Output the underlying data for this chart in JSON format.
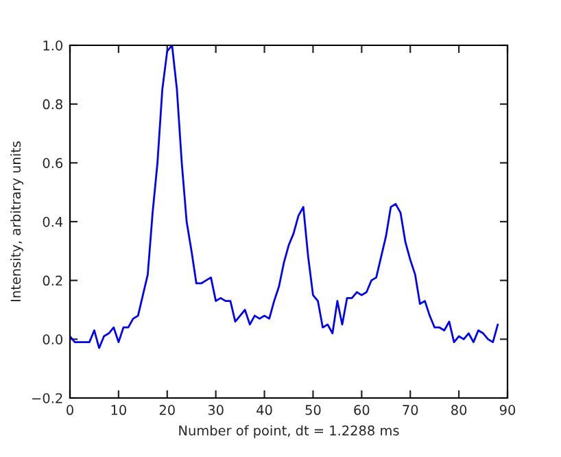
{
  "chart_data": {
    "type": "line",
    "xlabel": "Number of point, dt = 1.2288 ms",
    "ylabel": "Intensity, arbitrary units",
    "x": [
      0,
      1,
      2,
      3,
      4,
      5,
      6,
      7,
      8,
      9,
      10,
      11,
      12,
      13,
      14,
      15,
      16,
      17,
      18,
      19,
      20,
      21,
      22,
      23,
      24,
      25,
      26,
      27,
      28,
      29,
      30,
      31,
      32,
      33,
      34,
      35,
      36,
      37,
      38,
      39,
      40,
      41,
      42,
      43,
      44,
      45,
      46,
      47,
      48,
      49,
      50,
      51,
      52,
      53,
      54,
      55,
      56,
      57,
      58,
      59,
      60,
      61,
      62,
      63,
      64,
      65,
      66,
      67,
      68,
      69,
      70,
      71,
      72,
      73,
      74,
      75,
      76,
      77,
      78,
      79,
      80,
      81,
      82,
      83,
      84,
      85,
      86,
      87,
      88
    ],
    "series": [
      {
        "color": "#0000ff",
        "values": [
          0.01,
          -0.01,
          -0.01,
          -0.01,
          -0.01,
          0.03,
          -0.03,
          0.01,
          0.02,
          0.04,
          -0.01,
          0.04,
          0.04,
          0.07,
          0.08,
          0.15,
          0.22,
          0.43,
          0.6,
          0.85,
          0.98,
          1.0,
          0.85,
          0.6,
          0.4,
          0.3,
          0.19,
          0.19,
          0.2,
          0.21,
          0.13,
          0.14,
          0.13,
          0.13,
          0.06,
          0.08,
          0.1,
          0.05,
          0.08,
          0.07,
          0.08,
          0.07,
          0.13,
          0.18,
          0.26,
          0.32,
          0.36,
          0.42,
          0.45,
          0.28,
          0.15,
          0.13,
          0.04,
          0.05,
          0.02,
          0.13,
          0.05,
          0.14,
          0.14,
          0.16,
          0.15,
          0.16,
          0.2,
          0.21,
          0.28,
          0.35,
          0.45,
          0.46,
          0.43,
          0.33,
          0.27,
          0.22,
          0.12,
          0.13,
          0.08,
          0.04,
          0.04,
          0.03,
          0.06,
          -0.01,
          0.01,
          0.0,
          0.02,
          -0.01,
          0.03,
          0.02,
          0.0,
          -0.01,
          0.05
        ]
      }
    ],
    "xlim": [
      0,
      90
    ],
    "xticks": [
      0,
      10,
      20,
      30,
      40,
      50,
      60,
      70,
      80,
      90
    ],
    "ylim": [
      -0.2,
      1.0
    ],
    "yticks": [
      {
        "value": -0.2,
        "label": "−0.2"
      },
      {
        "value": 0.0,
        "label": "0.0"
      },
      {
        "value": 0.2,
        "label": "0.2"
      },
      {
        "value": 0.4,
        "label": "0.4"
      },
      {
        "value": 0.6,
        "label": "0.6"
      },
      {
        "value": 0.8,
        "label": "0.8"
      },
      {
        "value": 1.0,
        "label": "1.0"
      }
    ],
    "grid": false,
    "legend": false
  }
}
